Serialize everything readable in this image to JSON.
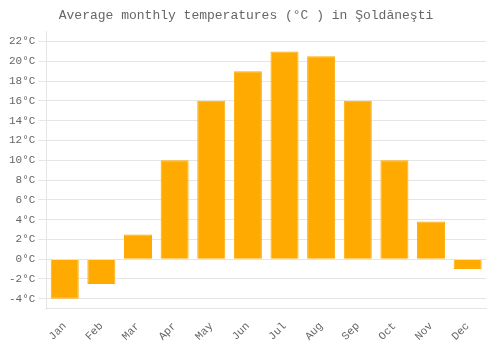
{
  "chart_data": {
    "type": "bar",
    "title": "Average monthly temperatures (°C ) in Şoldăneşti",
    "categories": [
      "Jan",
      "Feb",
      "Mar",
      "Apr",
      "May",
      "Jun",
      "Jul",
      "Aug",
      "Sep",
      "Oct",
      "Nov",
      "Dec"
    ],
    "values": [
      -4.0,
      -2.5,
      2.5,
      10.0,
      16.0,
      19.0,
      21.0,
      20.5,
      16.0,
      10.0,
      3.8,
      -1.0
    ],
    "color": "#FFAA00",
    "ylim": [
      -5,
      23
    ],
    "yticks": [
      {
        "value": -4,
        "label": "-4°C"
      },
      {
        "value": -2,
        "label": "-2°C"
      },
      {
        "value": 0,
        "label": "0°C"
      },
      {
        "value": 2,
        "label": "2°C"
      },
      {
        "value": 4,
        "label": "4°C"
      },
      {
        "value": 6,
        "label": "6°C"
      },
      {
        "value": 8,
        "label": "8°C"
      },
      {
        "value": 10,
        "label": "10°C"
      },
      {
        "value": 12,
        "label": "12°C"
      },
      {
        "value": 14,
        "label": "14°C"
      },
      {
        "value": 16,
        "label": "16°C"
      },
      {
        "value": 18,
        "label": "18°C"
      },
      {
        "value": 20,
        "label": "20°C"
      },
      {
        "value": 22,
        "label": "22°C"
      }
    ],
    "grid": true
  }
}
